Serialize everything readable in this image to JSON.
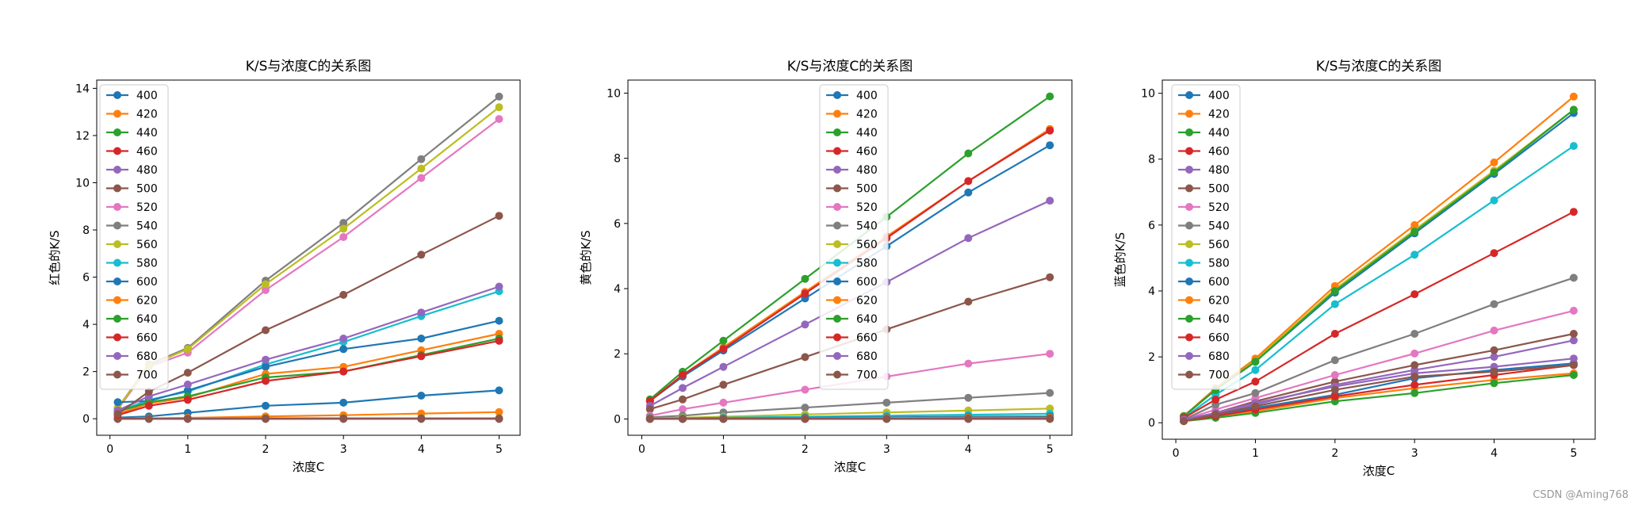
{
  "watermark": "CSDN @Aming768",
  "palette": [
    "#1f77b4",
    "#ff7f0e",
    "#2ca02c",
    "#d62728",
    "#9467bd",
    "#8c564b",
    "#e377c2",
    "#7f7f7f",
    "#bcbd22",
    "#17becf"
  ],
  "chart_data": [
    {
      "type": "line",
      "title": "K/S与浓度C的关系图",
      "xlabel": "浓度C",
      "ylabel": "红色的K/S",
      "x": [
        0.1,
        0.5,
        1,
        2,
        3,
        4,
        5
      ],
      "xlim": [
        -0.17,
        5.27
      ],
      "ylim": [
        -0.7,
        14.35
      ],
      "xticks": [
        0,
        1,
        2,
        3,
        4,
        5
      ],
      "yticks": [
        0,
        2,
        4,
        6,
        8,
        10,
        12,
        14
      ],
      "legend": "upper left",
      "series": [
        {
          "name": "400",
          "values": [
            0.05,
            0.1,
            0.25,
            0.55,
            0.68,
            0.98,
            1.2
          ]
        },
        {
          "name": "420",
          "values": [
            0.0,
            0.02,
            0.04,
            0.1,
            0.15,
            0.22,
            0.28
          ]
        },
        {
          "name": "440",
          "values": [
            0.0,
            0.0,
            0.0,
            0.02,
            0.02,
            0.02,
            0.02
          ]
        },
        {
          "name": "460",
          "values": [
            0.0,
            0.0,
            0.0,
            0.0,
            0.0,
            0.0,
            0.0
          ]
        },
        {
          "name": "480",
          "values": [
            0.0,
            0.0,
            0.0,
            0.0,
            0.0,
            0.0,
            0.0
          ]
        },
        {
          "name": "500",
          "values": [
            0.0,
            0.0,
            0.0,
            0.0,
            0.0,
            0.0,
            0.0
          ]
        },
        {
          "name": "520",
          "values": [
            0.4,
            2.2,
            2.8,
            5.45,
            7.7,
            10.2,
            12.7
          ]
        },
        {
          "name": "540",
          "values": [
            0.45,
            2.3,
            3.0,
            5.85,
            8.3,
            11.0,
            13.65
          ]
        },
        {
          "name": "560",
          "values": [
            0.45,
            2.25,
            2.95,
            5.7,
            8.05,
            10.6,
            13.2
          ]
        },
        {
          "name": "580",
          "values": [
            0.3,
            0.8,
            1.15,
            2.3,
            3.25,
            4.35,
            5.4
          ]
        },
        {
          "name": "600",
          "values": [
            0.7,
            0.75,
            1.2,
            2.2,
            2.95,
            3.4,
            4.15
          ]
        },
        {
          "name": "620",
          "values": [
            0.2,
            0.65,
            0.9,
            1.9,
            2.2,
            2.9,
            3.6
          ]
        },
        {
          "name": "640",
          "values": [
            0.3,
            0.7,
            0.95,
            1.75,
            2.0,
            2.7,
            3.4
          ]
        },
        {
          "name": "660",
          "values": [
            0.15,
            0.55,
            0.8,
            1.6,
            2.0,
            2.65,
            3.3
          ]
        },
        {
          "name": "680",
          "values": [
            0.35,
            0.95,
            1.45,
            2.5,
            3.4,
            4.5,
            5.6
          ]
        },
        {
          "name": "700",
          "values": [
            0.2,
            1.15,
            1.95,
            3.75,
            5.25,
            6.95,
            8.6
          ]
        }
      ]
    },
    {
      "type": "line",
      "title": "K/S与浓度C的关系图",
      "xlabel": "浓度C",
      "ylabel": "黄色的K/S",
      "x": [
        0.1,
        0.5,
        1,
        2,
        3,
        4,
        5
      ],
      "xlim": [
        -0.17,
        5.27
      ],
      "ylim": [
        -0.5,
        10.4
      ],
      "xticks": [
        0,
        1,
        2,
        3,
        4,
        5
      ],
      "yticks": [
        0,
        2,
        4,
        6,
        8,
        10
      ],
      "legend": "upper center",
      "series": [
        {
          "name": "400",
          "values": [
            0.55,
            1.3,
            2.1,
            3.7,
            5.3,
            6.95,
            8.4
          ]
        },
        {
          "name": "420",
          "values": [
            0.55,
            1.35,
            2.2,
            3.9,
            5.6,
            7.3,
            8.9
          ]
        },
        {
          "name": "440",
          "values": [
            0.6,
            1.45,
            2.4,
            4.3,
            6.2,
            8.15,
            9.9
          ]
        },
        {
          "name": "460",
          "values": [
            0.55,
            1.35,
            2.15,
            3.85,
            5.55,
            7.3,
            8.85
          ]
        },
        {
          "name": "480",
          "values": [
            0.4,
            0.95,
            1.6,
            2.9,
            4.2,
            5.55,
            6.7
          ]
        },
        {
          "name": "500",
          "values": [
            0.3,
            0.6,
            1.05,
            1.9,
            2.75,
            3.6,
            4.35
          ]
        },
        {
          "name": "520",
          "values": [
            0.1,
            0.3,
            0.5,
            0.9,
            1.3,
            1.7,
            2.0
          ]
        },
        {
          "name": "540",
          "values": [
            0.05,
            0.1,
            0.2,
            0.35,
            0.5,
            0.65,
            0.8
          ]
        },
        {
          "name": "560",
          "values": [
            0.02,
            0.04,
            0.07,
            0.14,
            0.2,
            0.26,
            0.32
          ]
        },
        {
          "name": "580",
          "values": [
            0.01,
            0.02,
            0.04,
            0.07,
            0.1,
            0.13,
            0.16
          ]
        },
        {
          "name": "600",
          "values": [
            0.01,
            0.01,
            0.02,
            0.04,
            0.05,
            0.07,
            0.08
          ]
        },
        {
          "name": "620",
          "values": [
            0.0,
            0.0,
            0.01,
            0.02,
            0.03,
            0.04,
            0.04
          ]
        },
        {
          "name": "640",
          "values": [
            0.0,
            0.0,
            0.0,
            0.01,
            0.01,
            0.02,
            0.02
          ]
        },
        {
          "name": "660",
          "values": [
            0.0,
            0.0,
            0.0,
            0.0,
            0.0,
            0.01,
            0.01
          ]
        },
        {
          "name": "680",
          "values": [
            0.0,
            0.0,
            0.0,
            0.0,
            0.0,
            0.0,
            0.0
          ]
        },
        {
          "name": "700",
          "values": [
            0.0,
            0.0,
            0.0,
            0.0,
            0.0,
            0.0,
            0.0
          ]
        }
      ]
    },
    {
      "type": "line",
      "title": "K/S与浓度C的关系图",
      "xlabel": "浓度C",
      "ylabel": "蓝色的K/S",
      "x": [
        0.1,
        0.5,
        1,
        2,
        3,
        4,
        5
      ],
      "xlim": [
        -0.17,
        5.27
      ],
      "ylim": [
        -0.5,
        10.4
      ],
      "xticks": [
        0,
        1,
        2,
        3,
        4,
        5
      ],
      "yticks": [
        0,
        2,
        4,
        6,
        8,
        10
      ],
      "legend": "upper left",
      "series": [
        {
          "name": "400",
          "values": [
            0.05,
            0.2,
            0.45,
            0.85,
            1.35,
            1.6,
            1.8
          ]
        },
        {
          "name": "420",
          "values": [
            0.05,
            0.2,
            0.35,
            0.75,
            1.05,
            1.3,
            1.5
          ]
        },
        {
          "name": "440",
          "values": [
            0.05,
            0.15,
            0.3,
            0.65,
            0.9,
            1.2,
            1.45
          ]
        },
        {
          "name": "460",
          "values": [
            0.05,
            0.2,
            0.4,
            0.8,
            1.15,
            1.45,
            1.75
          ]
        },
        {
          "name": "480",
          "values": [
            0.05,
            0.25,
            0.55,
            1.15,
            1.6,
            2.0,
            2.5
          ]
        },
        {
          "name": "500",
          "values": [
            0.05,
            0.3,
            0.65,
            1.25,
            1.75,
            2.2,
            2.7
          ]
        },
        {
          "name": "520",
          "values": [
            0.1,
            0.4,
            0.75,
            1.45,
            2.1,
            2.8,
            3.4
          ]
        },
        {
          "name": "540",
          "values": [
            0.1,
            0.55,
            0.9,
            1.9,
            2.7,
            3.6,
            4.4
          ]
        },
        {
          "name": "560",
          "values": [
            0.2,
            1.0,
            1.9,
            4.05,
            5.85,
            7.65,
            9.5
          ]
        },
        {
          "name": "580",
          "values": [
            0.15,
            0.85,
            1.6,
            3.6,
            5.1,
            6.75,
            8.4
          ]
        },
        {
          "name": "600",
          "values": [
            0.2,
            1.0,
            1.85,
            3.95,
            5.75,
            7.55,
            9.4
          ]
        },
        {
          "name": "620",
          "values": [
            0.2,
            1.05,
            1.95,
            4.15,
            6.0,
            7.9,
            9.9
          ]
        },
        {
          "name": "640",
          "values": [
            0.2,
            1.0,
            1.85,
            4.0,
            5.8,
            7.6,
            9.5
          ]
        },
        {
          "name": "660",
          "values": [
            0.15,
            0.7,
            1.25,
            2.7,
            3.9,
            5.15,
            6.4
          ]
        },
        {
          "name": "680",
          "values": [
            0.1,
            0.3,
            0.6,
            1.1,
            1.5,
            1.7,
            1.95
          ]
        },
        {
          "name": "700",
          "values": [
            0.05,
            0.25,
            0.5,
            1.0,
            1.4,
            1.55,
            1.75
          ]
        }
      ]
    }
  ]
}
